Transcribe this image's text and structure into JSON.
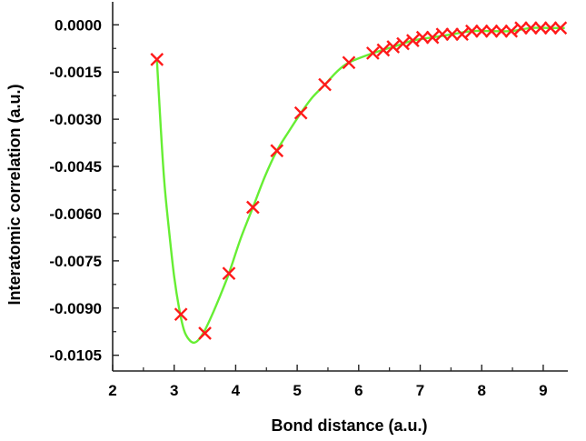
{
  "chart_data": {
    "type": "scatter",
    "title": "",
    "xlabel": "Bond distance (a.u.)",
    "ylabel": "Interatomic correlation (a.u.)",
    "xlim": [
      2,
      9.4
    ],
    "ylim": [
      -0.011,
      0.0005
    ],
    "x_ticks": [
      "2",
      "3",
      "4",
      "5",
      "6",
      "7",
      "8",
      "9"
    ],
    "y_ticks": [
      "0.0000",
      "-0.0015",
      "-0.0030",
      "-0.0045",
      "-0.0060",
      "-0.0075",
      "-0.0090",
      "-0.0105"
    ],
    "grid": false,
    "legend": "none",
    "series": [
      {
        "marker": "x",
        "color": "#ff1a1a",
        "points": [
          [
            2.72,
            -0.0011
          ],
          [
            3.11,
            -0.0092
          ],
          [
            3.5,
            -0.0098
          ],
          [
            3.89,
            -0.0079
          ],
          [
            4.28,
            -0.0058
          ],
          [
            4.67,
            -0.004
          ],
          [
            5.06,
            -0.0028
          ],
          [
            5.45,
            -0.0019
          ],
          [
            5.84,
            -0.0012
          ],
          [
            6.23,
            -0.0009
          ],
          [
            6.4,
            -0.0008
          ],
          [
            6.56,
            -0.0007
          ],
          [
            6.72,
            -0.0006
          ],
          [
            6.88,
            -0.0005
          ],
          [
            7.04,
            -0.0004
          ],
          [
            7.2,
            -0.0004
          ],
          [
            7.36,
            -0.0003
          ],
          [
            7.52,
            -0.0003
          ],
          [
            7.68,
            -0.0003
          ],
          [
            7.84,
            -0.0002
          ],
          [
            8.0,
            -0.0002
          ],
          [
            8.16,
            -0.0002
          ],
          [
            8.32,
            -0.0002
          ],
          [
            8.48,
            -0.0002
          ],
          [
            8.64,
            -0.0001
          ],
          [
            8.8,
            -0.0001
          ],
          [
            8.96,
            -0.0001
          ],
          [
            9.12,
            -0.0001
          ],
          [
            9.28,
            -0.0001
          ]
        ]
      }
    ],
    "fit_curve": {
      "color": "#66ee33",
      "points": [
        [
          2.72,
          -0.0011
        ],
        [
          2.78,
          -0.0032
        ],
        [
          2.84,
          -0.005
        ],
        [
          2.92,
          -0.0066
        ],
        [
          3.0,
          -0.008
        ],
        [
          3.08,
          -0.009
        ],
        [
          3.16,
          -0.0097
        ],
        [
          3.24,
          -0.01
        ],
        [
          3.32,
          -0.0101
        ],
        [
          3.4,
          -0.01
        ],
        [
          3.5,
          -0.0097
        ],
        [
          3.62,
          -0.0092
        ],
        [
          3.75,
          -0.0086
        ],
        [
          3.89,
          -0.0079
        ],
        [
          4.08,
          -0.0068
        ],
        [
          4.28,
          -0.0058
        ],
        [
          4.48,
          -0.0048
        ],
        [
          4.67,
          -0.004
        ],
        [
          4.86,
          -0.0034
        ],
        [
          5.06,
          -0.0028
        ],
        [
          5.25,
          -0.0023
        ],
        [
          5.45,
          -0.0019
        ],
        [
          5.64,
          -0.0015
        ],
        [
          5.84,
          -0.0012
        ],
        [
          6.23,
          -0.0009
        ],
        [
          6.56,
          -0.0007
        ],
        [
          6.88,
          -0.0005
        ],
        [
          7.2,
          -0.0004
        ],
        [
          7.52,
          -0.0003
        ],
        [
          7.84,
          -0.0002
        ],
        [
          8.16,
          -0.0002
        ],
        [
          8.48,
          -0.0002
        ],
        [
          8.8,
          -0.0001
        ],
        [
          9.12,
          -0.0001
        ],
        [
          9.35,
          -0.0001
        ]
      ]
    }
  }
}
